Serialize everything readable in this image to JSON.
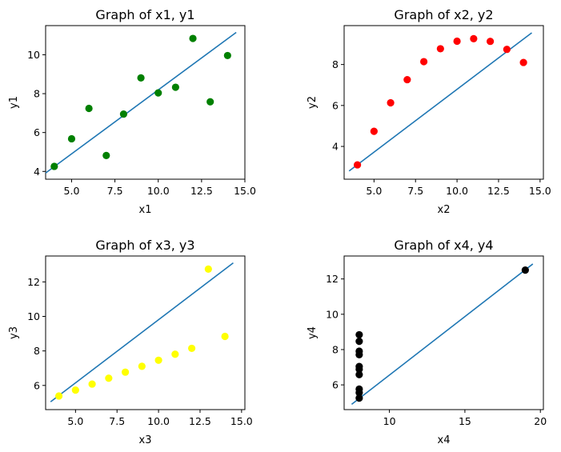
{
  "chart_data": [
    {
      "type": "scatter",
      "title": "Graph of x1, y1",
      "xlabel": "x1",
      "ylabel": "y1",
      "xlim": [
        3.5,
        15.0
      ],
      "ylim": [
        3.6,
        11.5
      ],
      "xticks": [
        5.0,
        7.5,
        10.0,
        12.5,
        15.0
      ],
      "xtick_labels": [
        "5.0",
        "7.5",
        "10.0",
        "12.5",
        "15.0"
      ],
      "yticks": [
        4,
        6,
        8,
        10
      ],
      "ytick_labels": [
        "4",
        "6",
        "8",
        "10"
      ],
      "point_color": "#008000",
      "x": [
        10,
        8,
        13,
        9,
        11,
        14,
        6,
        4,
        12,
        7,
        5
      ],
      "y": [
        8.04,
        6.95,
        7.58,
        8.81,
        8.33,
        9.96,
        7.24,
        4.26,
        10.84,
        4.82,
        5.68
      ],
      "fit_line": {
        "x": [
          3.5,
          14.5
        ],
        "y": [
          3.92,
          11.15
        ],
        "color": "#1f77b4"
      }
    },
    {
      "type": "scatter",
      "title": "Graph of x2, y2",
      "xlabel": "x2",
      "ylabel": "y2",
      "xlim": [
        3.2,
        15.2
      ],
      "ylim": [
        2.4,
        9.9
      ],
      "xticks": [
        5.0,
        7.5,
        10.0,
        12.5,
        15.0
      ],
      "xtick_labels": [
        "5.0",
        "7.5",
        "10.0",
        "12.5",
        "15.0"
      ],
      "yticks": [
        4,
        6,
        8
      ],
      "ytick_labels": [
        "4",
        "6",
        "8"
      ],
      "point_color": "#ff0000",
      "x": [
        10,
        8,
        13,
        9,
        11,
        14,
        6,
        4,
        12,
        7,
        5
      ],
      "y": [
        9.14,
        8.14,
        8.74,
        8.77,
        9.26,
        8.1,
        6.13,
        3.1,
        9.13,
        7.26,
        4.74
      ],
      "fit_line": {
        "x": [
          3.5,
          14.5
        ],
        "y": [
          2.8,
          9.55
        ],
        "color": "#1f77b4"
      }
    },
    {
      "type": "scatter",
      "title": "Graph of x3, y3",
      "xlabel": "x3",
      "ylabel": "y3",
      "xlim": [
        3.2,
        15.2
      ],
      "ylim": [
        4.6,
        13.5
      ],
      "xticks": [
        5.0,
        7.5,
        10.0,
        12.5,
        15.0
      ],
      "xtick_labels": [
        "5.0",
        "7.5",
        "10.0",
        "12.5",
        "15.0"
      ],
      "yticks": [
        6,
        8,
        10,
        12
      ],
      "ytick_labels": [
        "6",
        "8",
        "10",
        "12"
      ],
      "point_color": "#ffff00",
      "x": [
        10,
        8,
        13,
        9,
        11,
        14,
        6,
        4,
        12,
        7,
        5
      ],
      "y": [
        7.46,
        6.77,
        12.74,
        7.11,
        7.81,
        8.84,
        6.08,
        5.39,
        8.15,
        6.42,
        5.73
      ],
      "fit_line": {
        "x": [
          3.5,
          14.5
        ],
        "y": [
          5.05,
          13.1
        ],
        "color": "#1f77b4"
      }
    },
    {
      "type": "scatter",
      "title": "Graph of x4, y4",
      "xlabel": "x4",
      "ylabel": "y4",
      "xlim": [
        7.0,
        20.2
      ],
      "ylim": [
        4.6,
        13.3
      ],
      "xticks": [
        10,
        15,
        20
      ],
      "xtick_labels": [
        "10",
        "15",
        "20"
      ],
      "yticks": [
        6,
        8,
        10,
        12
      ],
      "ytick_labels": [
        "6",
        "8",
        "10",
        "12"
      ],
      "point_color": "#000000",
      "x": [
        8,
        8,
        8,
        8,
        8,
        8,
        8,
        19,
        8,
        8,
        8
      ],
      "y": [
        6.58,
        5.76,
        7.71,
        8.84,
        8.47,
        7.04,
        5.25,
        12.5,
        5.56,
        7.91,
        6.89
      ],
      "fit_line": {
        "x": [
          7.5,
          19.5
        ],
        "y": [
          4.9,
          12.85
        ],
        "color": "#1f77b4"
      }
    }
  ]
}
